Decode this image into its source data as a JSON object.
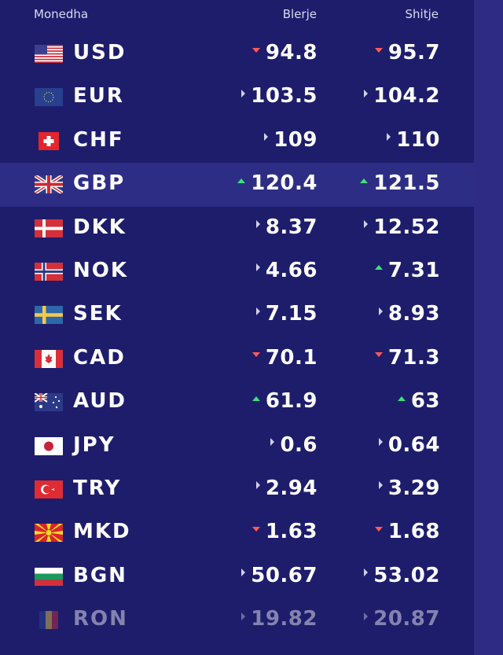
{
  "header": {
    "currency": "Monedha",
    "buy": "Blerje",
    "sell": "Shitje"
  },
  "colors": {
    "background": "#1e1d6c",
    "highlight": "#2e2d86",
    "up": "#3ee07a",
    "down": "#ff5a5a",
    "flat": "#cfd0ee"
  },
  "rates": [
    {
      "code": "USD",
      "flag": "us-flag-icon",
      "buy": "94.8",
      "buy_trend": "down",
      "sell": "95.7",
      "sell_trend": "down"
    },
    {
      "code": "EUR",
      "flag": "eu-flag-icon",
      "buy": "103.5",
      "buy_trend": "flat",
      "sell": "104.2",
      "sell_trend": "flat"
    },
    {
      "code": "CHF",
      "flag": "ch-flag-icon",
      "buy": "109",
      "buy_trend": "flat",
      "sell": "110",
      "sell_trend": "flat"
    },
    {
      "code": "GBP",
      "flag": "gb-flag-icon",
      "buy": "120.4",
      "buy_trend": "up",
      "sell": "121.5",
      "sell_trend": "up",
      "highlighted": true
    },
    {
      "code": "DKK",
      "flag": "dk-flag-icon",
      "buy": "8.37",
      "buy_trend": "flat",
      "sell": "12.52",
      "sell_trend": "flat"
    },
    {
      "code": "NOK",
      "flag": "no-flag-icon",
      "buy": "4.66",
      "buy_trend": "flat",
      "sell": "7.31",
      "sell_trend": "up"
    },
    {
      "code": "SEK",
      "flag": "se-flag-icon",
      "buy": "7.15",
      "buy_trend": "flat",
      "sell": "8.93",
      "sell_trend": "flat"
    },
    {
      "code": "CAD",
      "flag": "ca-flag-icon",
      "buy": "70.1",
      "buy_trend": "down",
      "sell": "71.3",
      "sell_trend": "down"
    },
    {
      "code": "AUD",
      "flag": "au-flag-icon",
      "buy": "61.9",
      "buy_trend": "up",
      "sell": "63",
      "sell_trend": "up"
    },
    {
      "code": "JPY",
      "flag": "jp-flag-icon",
      "buy": "0.6",
      "buy_trend": "flat",
      "sell": "0.64",
      "sell_trend": "flat"
    },
    {
      "code": "TRY",
      "flag": "tr-flag-icon",
      "buy": "2.94",
      "buy_trend": "flat",
      "sell": "3.29",
      "sell_trend": "flat"
    },
    {
      "code": "MKD",
      "flag": "mk-flag-icon",
      "buy": "1.63",
      "buy_trend": "down",
      "sell": "1.68",
      "sell_trend": "down"
    },
    {
      "code": "BGN",
      "flag": "bg-flag-icon",
      "buy": "50.67",
      "buy_trend": "flat",
      "sell": "53.02",
      "sell_trend": "flat"
    },
    {
      "code": "RON",
      "flag": "ro-flag-icon",
      "buy": "19.82",
      "buy_trend": "flat",
      "sell": "20.87",
      "sell_trend": "flat",
      "faded": true
    }
  ]
}
